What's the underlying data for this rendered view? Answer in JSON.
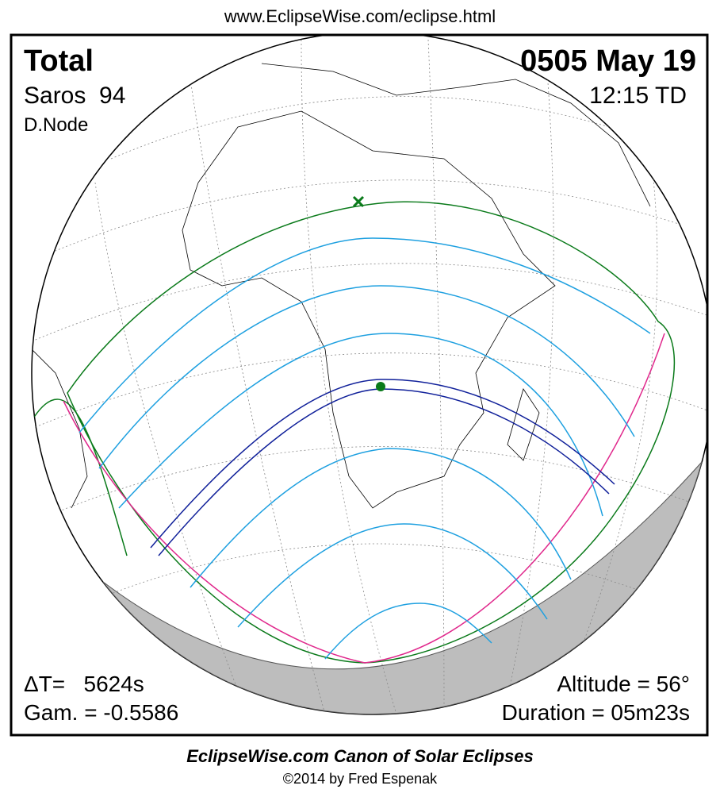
{
  "header": {
    "url": "www.EclipseWise.com/eclipse.html"
  },
  "info": {
    "type": "Total",
    "date": "0505 May 19",
    "saros": "Saros  94",
    "time": "12:15 TD",
    "node": "D.Node",
    "delta_t": "ΔT=   5624s",
    "gamma": "Gam. = -0.5586",
    "altitude": "Altitude = 56°",
    "duration": "Duration = 05m23s"
  },
  "footer": {
    "title": "EclipseWise.com Canon of Solar Eclipses",
    "copyright": "©2014 by Fred Espenak"
  }
}
